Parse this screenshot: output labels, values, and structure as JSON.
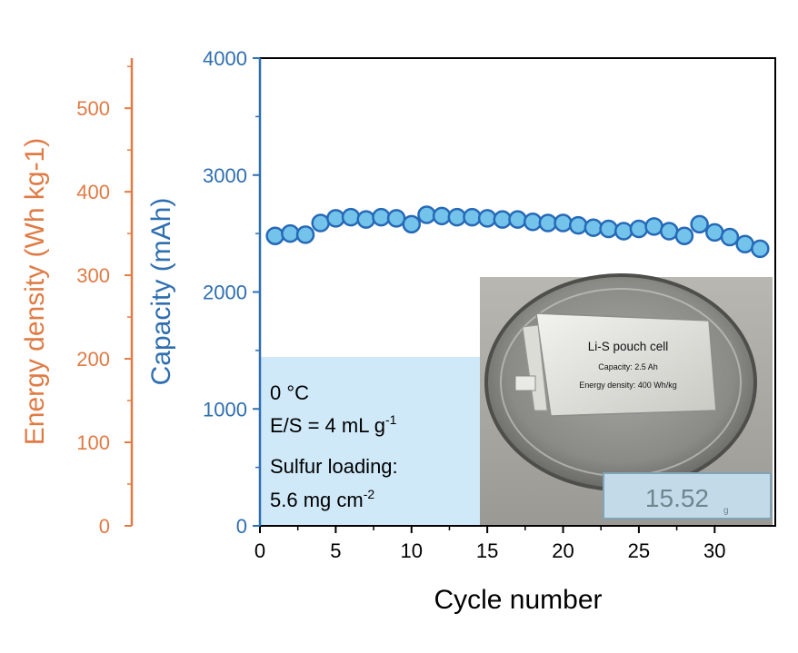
{
  "colors": {
    "capacity_axis": "#2f6fb0",
    "energy_axis": "#e07b45",
    "marker_fill": "#74c3ea",
    "marker_edge": "#2569b8",
    "inset_box": "#cfe9f8",
    "frame": "#000000"
  },
  "chart_data": {
    "type": "scatter",
    "xlabel": "Cycle number",
    "ylabel": "Capacity (mAh)",
    "ylabel2": "Energy density (Wh kg-1)",
    "xlim": [
      0,
      34
    ],
    "ylim": [
      0,
      4000
    ],
    "y2lim": [
      0,
      560
    ],
    "xticks": [
      "0",
      "5",
      "10",
      "15",
      "20",
      "25",
      "30"
    ],
    "yticks": [
      "0",
      "1000",
      "2000",
      "3000",
      "4000"
    ],
    "y2ticks": [
      "0",
      "100",
      "200",
      "300",
      "400",
      "500"
    ],
    "grid": false,
    "series": [
      {
        "x": [
          1,
          2,
          3,
          4,
          5,
          6,
          7,
          8,
          9,
          10,
          11,
          12,
          13,
          14,
          15,
          16,
          17,
          18,
          19,
          20,
          21,
          22,
          23,
          24,
          25,
          26,
          27,
          28,
          29,
          30,
          31,
          32,
          33
        ],
        "values": [
          2480,
          2500,
          2490,
          2590,
          2630,
          2640,
          2620,
          2640,
          2630,
          2580,
          2660,
          2650,
          2640,
          2640,
          2630,
          2620,
          2620,
          2600,
          2590,
          2590,
          2570,
          2550,
          2540,
          2520,
          2540,
          2560,
          2520,
          2480,
          2580,
          2510,
          2470,
          2410,
          2370
        ]
      }
    ]
  },
  "conditions": {
    "line1": "0 °C",
    "line2_main": "E/S = 4 mL g",
    "line2_sup": "-1",
    "line3": "Sulfur loading:",
    "line4_main": "5.6 mg cm",
    "line4_sup": "-2"
  },
  "photo": {
    "label_title": "Li-S pouch cell",
    "label_capacity": "Capacity: 2.5 Ah",
    "label_energy": "Energy density: 400 Wh/kg",
    "scale_reading": "15.52",
    "scale_unit": "g"
  }
}
